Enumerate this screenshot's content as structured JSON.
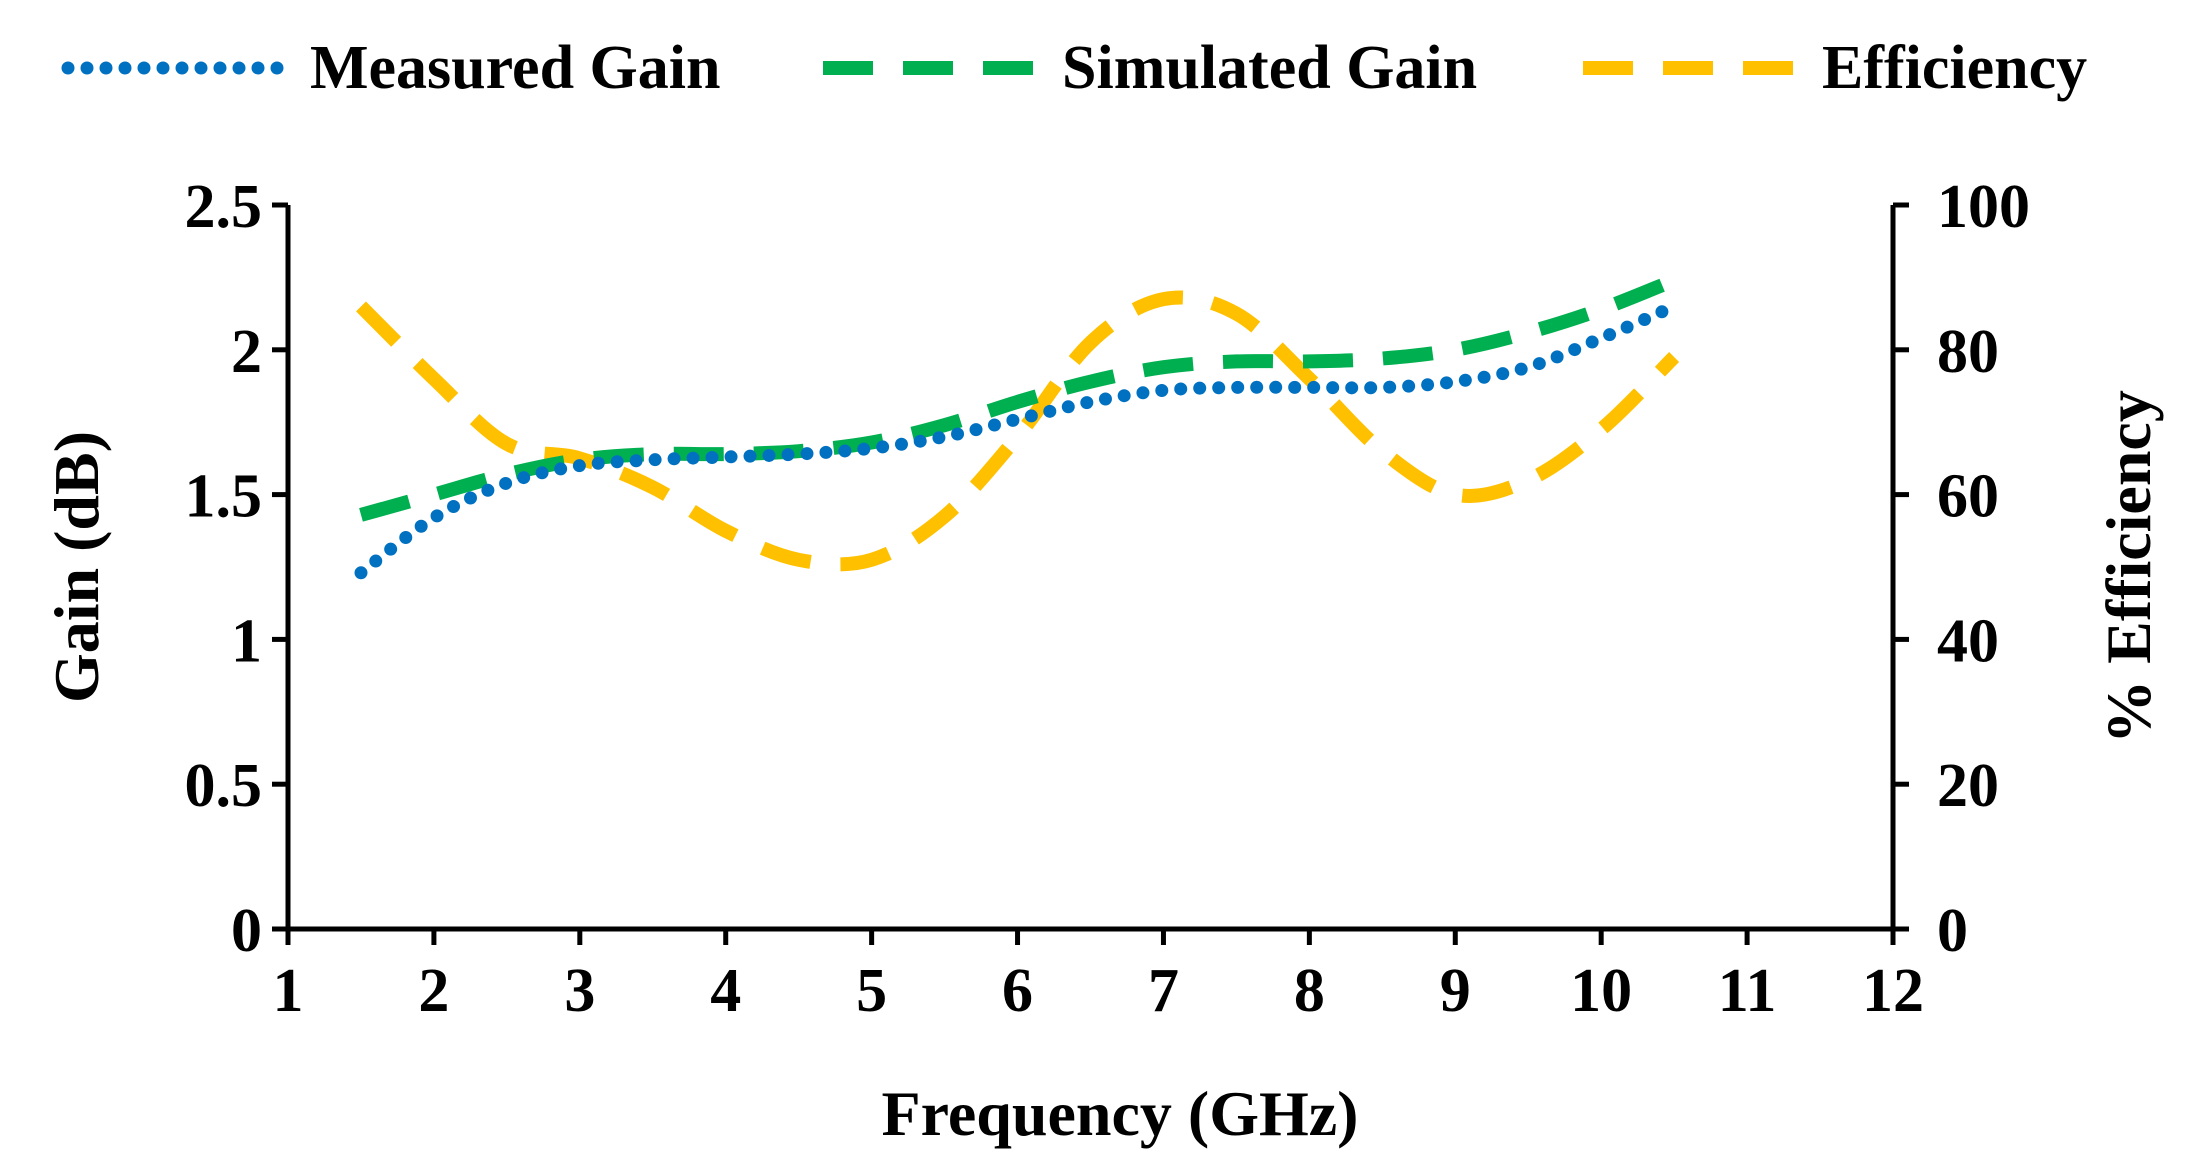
{
  "chart_data": {
    "type": "line",
    "title": "",
    "xlabel": "Frequency (GHz)",
    "ylabel": "Gain (dB)",
    "y2label": "% Efficiency",
    "xlim": [
      1,
      12
    ],
    "ylim": [
      0,
      2.5
    ],
    "y2lim": [
      0,
      100
    ],
    "x_ticks": [
      1,
      2,
      3,
      4,
      5,
      6,
      7,
      8,
      9,
      10,
      11,
      12
    ],
    "x_tick_labels": [
      "1",
      "2",
      "3",
      "4",
      "5",
      "6",
      "7",
      "8",
      "9",
      "10",
      "11",
      "12"
    ],
    "y_ticks": [
      0,
      0.5,
      1,
      1.5,
      2,
      2.5
    ],
    "y_tick_labels": [
      "0",
      "0.5",
      "1",
      "1.5",
      "2",
      "2.5"
    ],
    "y2_ticks": [
      0,
      20,
      40,
      60,
      80,
      100
    ],
    "y2_tick_labels": [
      "0",
      "20",
      "40",
      "60",
      "80",
      "100"
    ],
    "grid": false,
    "legend_position": "top",
    "series": [
      {
        "name": "Measured Gain",
        "axis": "left",
        "style": "dotted",
        "color": "#0070C0",
        "x": [
          1.5,
          2.0,
          2.5,
          3.0,
          3.5,
          4.0,
          4.5,
          5.0,
          5.5,
          6.0,
          6.5,
          7.0,
          7.5,
          8.0,
          8.5,
          9.0,
          9.5,
          10.0,
          10.5
        ],
        "values": [
          1.23,
          1.42,
          1.54,
          1.6,
          1.62,
          1.63,
          1.64,
          1.66,
          1.7,
          1.76,
          1.82,
          1.86,
          1.87,
          1.87,
          1.87,
          1.89,
          1.94,
          2.04,
          2.15
        ]
      },
      {
        "name": "Simulated Gain",
        "axis": "left",
        "style": "dashed",
        "color": "#00B050",
        "x": [
          1.5,
          2.0,
          2.5,
          3.0,
          3.5,
          4.0,
          4.5,
          5.0,
          5.5,
          6.0,
          6.5,
          7.0,
          7.5,
          8.0,
          8.5,
          9.0,
          9.5,
          10.0,
          10.5
        ],
        "values": [
          1.43,
          1.5,
          1.57,
          1.62,
          1.64,
          1.64,
          1.65,
          1.68,
          1.74,
          1.82,
          1.89,
          1.94,
          1.96,
          1.96,
          1.97,
          2.0,
          2.06,
          2.14,
          2.24
        ]
      },
      {
        "name": "Efficiency",
        "axis": "right",
        "style": "dashed",
        "color": "#FFC000",
        "x": [
          1.5,
          2.0,
          2.5,
          3.0,
          3.5,
          4.0,
          4.5,
          5.0,
          5.5,
          6.0,
          6.5,
          7.0,
          7.5,
          8.0,
          8.5,
          9.0,
          9.5,
          10.0,
          10.5
        ],
        "values": [
          86,
          76,
          67,
          65,
          61,
          55,
          51,
          51,
          57,
          68,
          81,
          87,
          85,
          76,
          66,
          60,
          62,
          69,
          79
        ]
      }
    ]
  }
}
